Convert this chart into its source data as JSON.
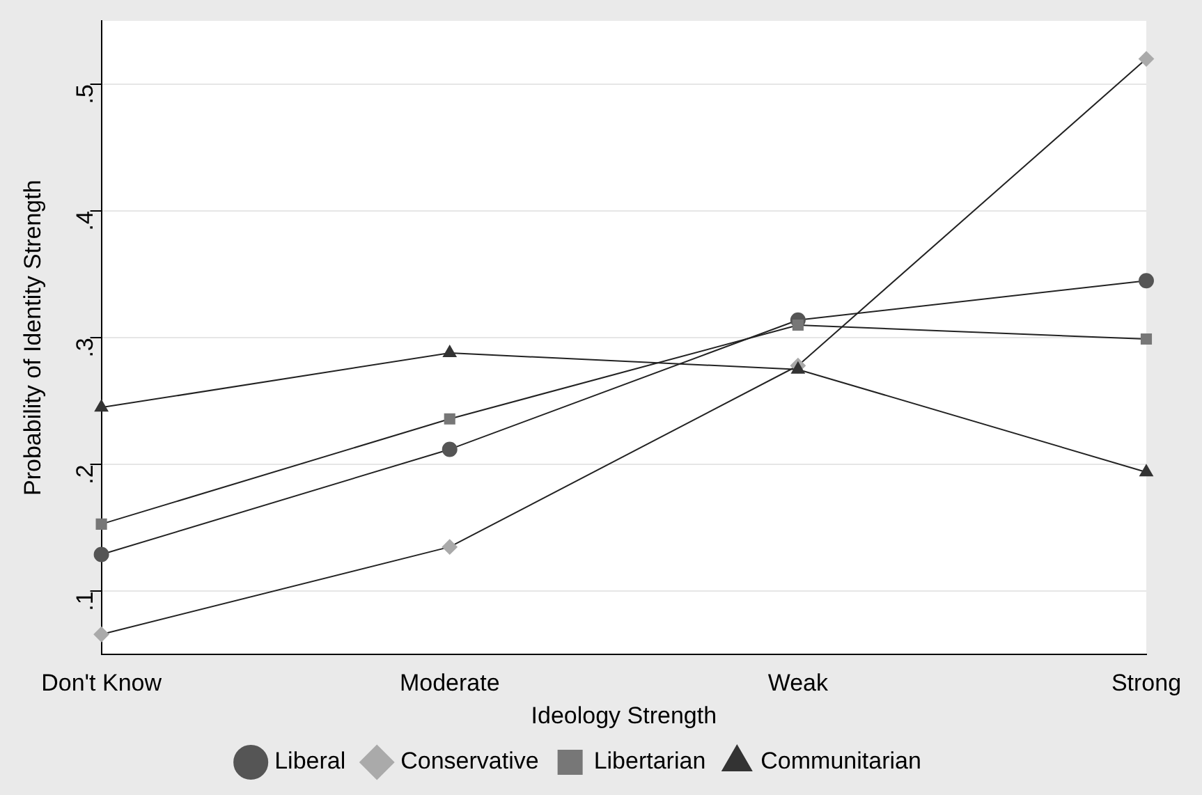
{
  "chart_data": {
    "type": "line",
    "xlabel": "Ideology Strength",
    "ylabel": "Probability of Identity Strength",
    "categories": [
      "Don't Know",
      "Moderate",
      "Weak",
      "Strong"
    ],
    "series": [
      {
        "name": "Liberal",
        "color": "#555555",
        "marker": "circle",
        "values": [
          0.129,
          0.212,
          0.314,
          0.345
        ]
      },
      {
        "name": "Conservative",
        "color": "#aaaaaa",
        "marker": "diamond",
        "values": [
          0.066,
          0.135,
          0.278,
          0.52
        ]
      },
      {
        "name": "Libertarian",
        "color": "#777777",
        "marker": "square",
        "values": [
          0.153,
          0.236,
          0.31,
          0.299
        ]
      },
      {
        "name": "Communitarian",
        "color": "#333333",
        "marker": "triangle",
        "values": [
          0.245,
          0.288,
          0.275,
          0.194
        ]
      }
    ],
    "ylim": [
      0.05,
      0.55
    ],
    "yticks": [
      {
        "value": 0.1,
        "label": ".1"
      },
      {
        "value": 0.2,
        "label": ".2"
      },
      {
        "value": 0.3,
        "label": ".3"
      },
      {
        "value": 0.4,
        "label": ".4"
      },
      {
        "value": 0.5,
        "label": ".5"
      }
    ],
    "grid": "y",
    "legend": "bottom",
    "line_style": "solid"
  }
}
